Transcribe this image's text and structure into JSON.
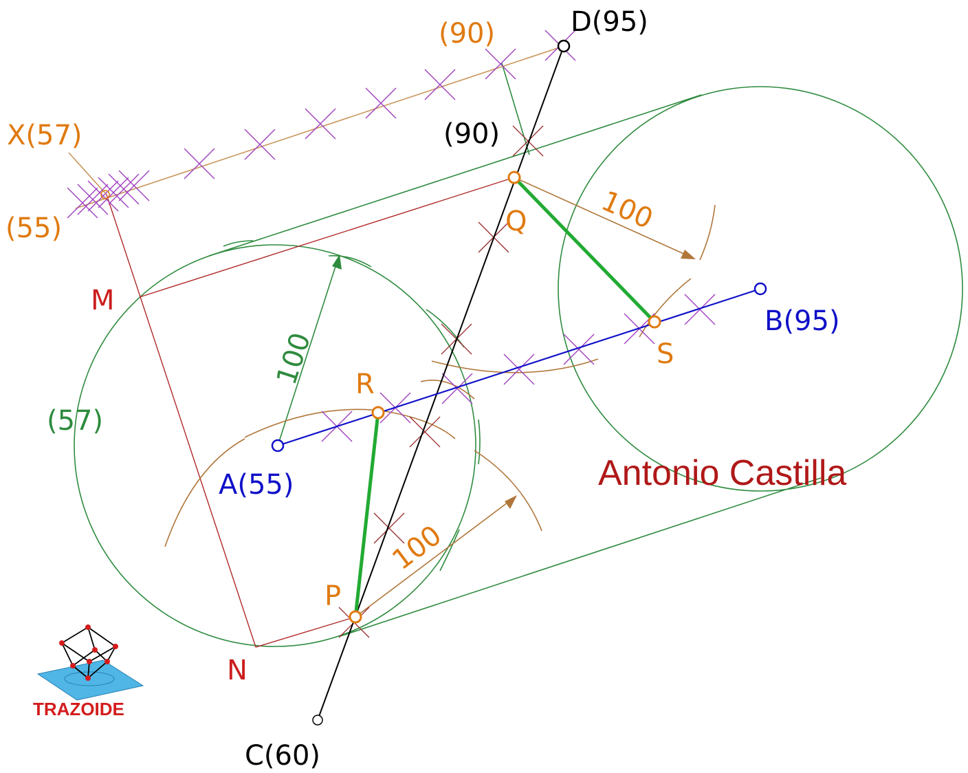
{
  "colors": {
    "green": "#2e8b3e",
    "green_seg": "#22aa33",
    "blue": "#1010c8",
    "black": "#000000",
    "orange": "#e07a10",
    "brown": "#b0763a",
    "tan": "#c8955a",
    "red": "#cc1e1e",
    "darkred": "#9a1a1a",
    "magenta": "#a040c0",
    "author_red": "#b01818"
  },
  "points": {
    "A": "A(55)",
    "B": "B(95)",
    "C": "C(60)",
    "D": "D(95)",
    "X": "X(57)",
    "P": "P",
    "Q": "Q",
    "R": "R",
    "S": "S",
    "M": "M",
    "N": "N"
  },
  "labels": {
    "d90_orange": "(90)",
    "d90_black": "(90)",
    "x55": "(55)",
    "c57": "(57)",
    "dist_green": "100",
    "dist_q": "100",
    "dist_p": "100"
  },
  "author": "Antonio  Castilla",
  "logo": {
    "text": "TRAZOIDE",
    "icon": "cube-logo-icon"
  }
}
